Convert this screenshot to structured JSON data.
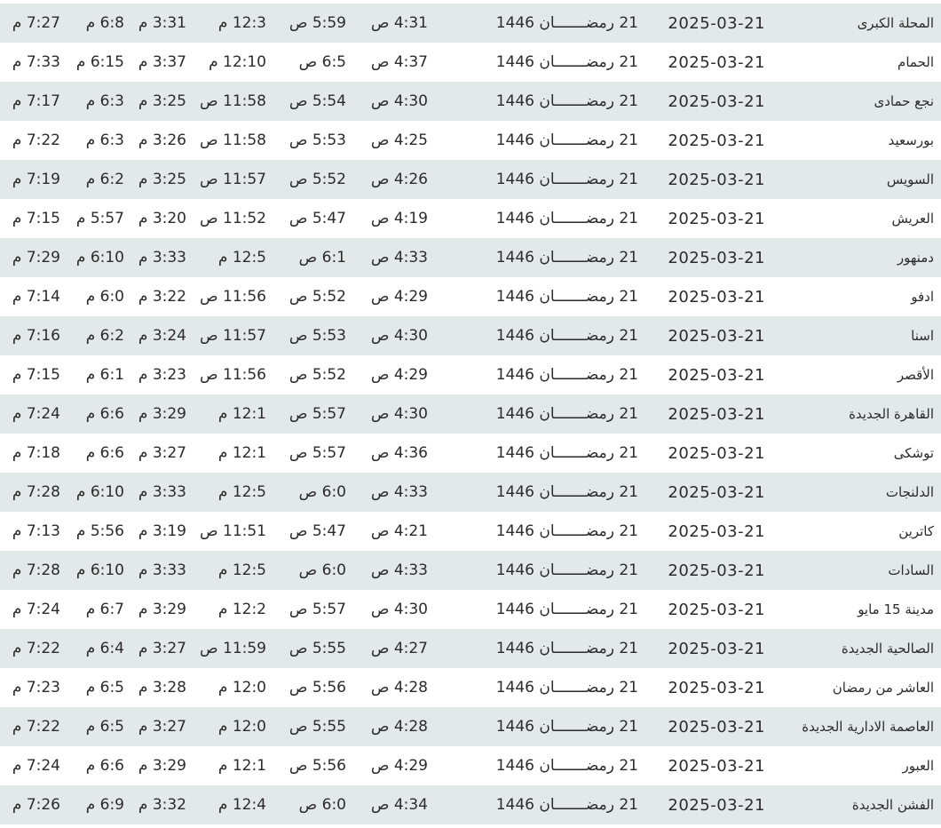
{
  "colors": {
    "row_alt": "#e3e8ea",
    "row": "#ffffff",
    "text": "#2b2b2b"
  },
  "rows": [
    [
      "المحلة الكبرى",
      "2025-03-21",
      "21 رمضـــــــان 1446",
      "4:31 ص",
      "5:59 ص",
      "12:3 م",
      "3:31 م",
      "6:8 م",
      "7:27 م"
    ],
    [
      "الحمام",
      "2025-03-21",
      "21 رمضـــــــان 1446",
      "4:37 ص",
      "6:5 ص",
      "12:10 م",
      "3:37 م",
      "6:15 م",
      "7:33 م"
    ],
    [
      "نجع حمادى",
      "2025-03-21",
      "21 رمضـــــــان 1446",
      "4:30 ص",
      "5:54 ص",
      "11:58 ص",
      "3:25 م",
      "6:3 م",
      "7:17 م"
    ],
    [
      "بورسعيد",
      "2025-03-21",
      "21 رمضـــــــان 1446",
      "4:25 ص",
      "5:53 ص",
      "11:58 ص",
      "3:26 م",
      "6:3 م",
      "7:22 م"
    ],
    [
      "السويس",
      "2025-03-21",
      "21 رمضـــــــان 1446",
      "4:26 ص",
      "5:52 ص",
      "11:57 ص",
      "3:25 م",
      "6:2 م",
      "7:19 م"
    ],
    [
      "العريش",
      "2025-03-21",
      "21 رمضـــــــان 1446",
      "4:19 ص",
      "5:47 ص",
      "11:52 ص",
      "3:20 م",
      "5:57 م",
      "7:15 م"
    ],
    [
      "دمنهور",
      "2025-03-21",
      "21 رمضـــــــان 1446",
      "4:33 ص",
      "6:1 ص",
      "12:5 م",
      "3:33 م",
      "6:10 م",
      "7:29 م"
    ],
    [
      "ادفو",
      "2025-03-21",
      "21 رمضـــــــان 1446",
      "4:29 ص",
      "5:52 ص",
      "11:56 ص",
      "3:22 م",
      "6:0 م",
      "7:14 م"
    ],
    [
      "اسنا",
      "2025-03-21",
      "21 رمضـــــــان 1446",
      "4:30 ص",
      "5:53 ص",
      "11:57 ص",
      "3:24 م",
      "6:2 م",
      "7:16 م"
    ],
    [
      "الأقصر",
      "2025-03-21",
      "21 رمضـــــــان 1446",
      "4:29 ص",
      "5:52 ص",
      "11:56 ص",
      "3:23 م",
      "6:1 م",
      "7:15 م"
    ],
    [
      "القاهرة الجديدة",
      "2025-03-21",
      "21 رمضـــــــان 1446",
      "4:30 ص",
      "5:57 ص",
      "12:1 م",
      "3:29 م",
      "6:6 م",
      "7:24 م"
    ],
    [
      "توشكى",
      "2025-03-21",
      "21 رمضـــــــان 1446",
      "4:36 ص",
      "5:57 ص",
      "12:1 م",
      "3:27 م",
      "6:6 م",
      "7:18 م"
    ],
    [
      "الدلنجات",
      "2025-03-21",
      "21 رمضـــــــان 1446",
      "4:33 ص",
      "6:0 ص",
      "12:5 م",
      "3:33 م",
      "6:10 م",
      "7:28 م"
    ],
    [
      "كاترين",
      "2025-03-21",
      "21 رمضـــــــان 1446",
      "4:21 ص",
      "5:47 ص",
      "11:51 ص",
      "3:19 م",
      "5:56 م",
      "7:13 م"
    ],
    [
      "السادات",
      "2025-03-21",
      "21 رمضـــــــان 1446",
      "4:33 ص",
      "6:0 ص",
      "12:5 م",
      "3:33 م",
      "6:10 م",
      "7:28 م"
    ],
    [
      "مدينة 15 مايو",
      "2025-03-21",
      "21 رمضـــــــان 1446",
      "4:30 ص",
      "5:57 ص",
      "12:2 م",
      "3:29 م",
      "6:7 م",
      "7:24 م"
    ],
    [
      "الصالحية الجديدة",
      "2025-03-21",
      "21 رمضـــــــان 1446",
      "4:27 ص",
      "5:55 ص",
      "11:59 ص",
      "3:27 م",
      "6:4 م",
      "7:22 م"
    ],
    [
      "العاشر من رمضان",
      "2025-03-21",
      "21 رمضـــــــان 1446",
      "4:28 ص",
      "5:56 ص",
      "12:0 م",
      "3:28 م",
      "6:5 م",
      "7:23 م"
    ],
    [
      "العاصمة الادارية الجديدة",
      "2025-03-21",
      "21 رمضـــــــان 1446",
      "4:28 ص",
      "5:55 ص",
      "12:0 م",
      "3:27 م",
      "6:5 م",
      "7:22 م"
    ],
    [
      "العبور",
      "2025-03-21",
      "21 رمضـــــــان 1446",
      "4:29 ص",
      "5:56 ص",
      "12:1 م",
      "3:29 م",
      "6:6 م",
      "7:24 م"
    ],
    [
      "الفشن الجديدة",
      "2025-03-21",
      "21 رمضـــــــان 1446",
      "4:34 ص",
      "6:0 ص",
      "12:4 م",
      "3:32 م",
      "6:9 م",
      "7:26 م"
    ]
  ]
}
